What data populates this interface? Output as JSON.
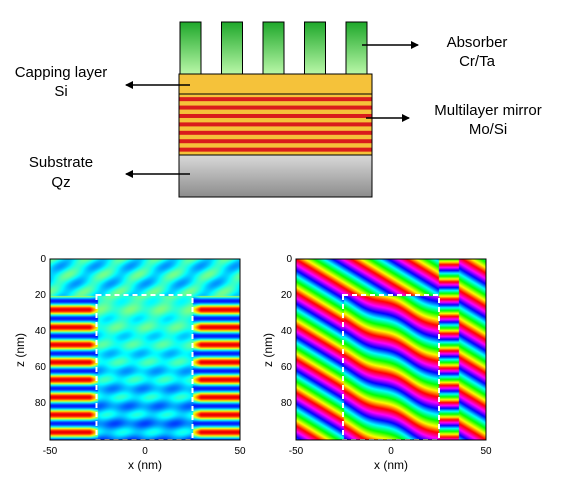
{
  "schematic": {
    "absorber": {
      "line1": "Absorber",
      "line2": "Cr/Ta"
    },
    "capping": {
      "line1": "Capping layer",
      "line2": "Si"
    },
    "multilayer": {
      "line1": "Multilayer mirror",
      "line2": "Mo/Si"
    },
    "substrate": {
      "line1": "Substrate",
      "line2": "Qz"
    },
    "absorber_line_count": 5,
    "multilayer_pair_count": 7,
    "colors": {
      "absorber_top": "#1fa82b",
      "absorber_bottom": "#b9f7a8",
      "capping": "#f5c23a",
      "mo_layer": "#d91c1c",
      "si_layer": "#f5c23a",
      "substrate_top": "#d9d9d9",
      "substrate_bottom": "#8c8c8c",
      "outline": "#000000"
    }
  },
  "field_plots": [
    {
      "quantity": "amplitude",
      "xlabel": "x (nm)",
      "ylabel": "z (nm)",
      "xticks": [
        "-50",
        "0",
        "50"
      ],
      "yticks": [
        "0",
        "20",
        "40",
        "60",
        "80"
      ],
      "xlim": [
        -50,
        50
      ],
      "zlim": [
        0,
        100
      ],
      "dashed_box": {
        "x_range": [
          -25,
          25
        ],
        "z_range": [
          20,
          100
        ]
      }
    },
    {
      "quantity": "phase",
      "xlabel": "x (nm)",
      "ylabel": "z (nm)",
      "xticks": [
        "-50",
        "0",
        "50"
      ],
      "yticks": [
        "0",
        "20",
        "40",
        "60",
        "80"
      ],
      "xlim": [
        -50,
        50
      ],
      "zlim": [
        0,
        100
      ],
      "dashed_box": {
        "x_range": [
          -25,
          25
        ],
        "z_range": [
          20,
          100
        ]
      }
    }
  ]
}
